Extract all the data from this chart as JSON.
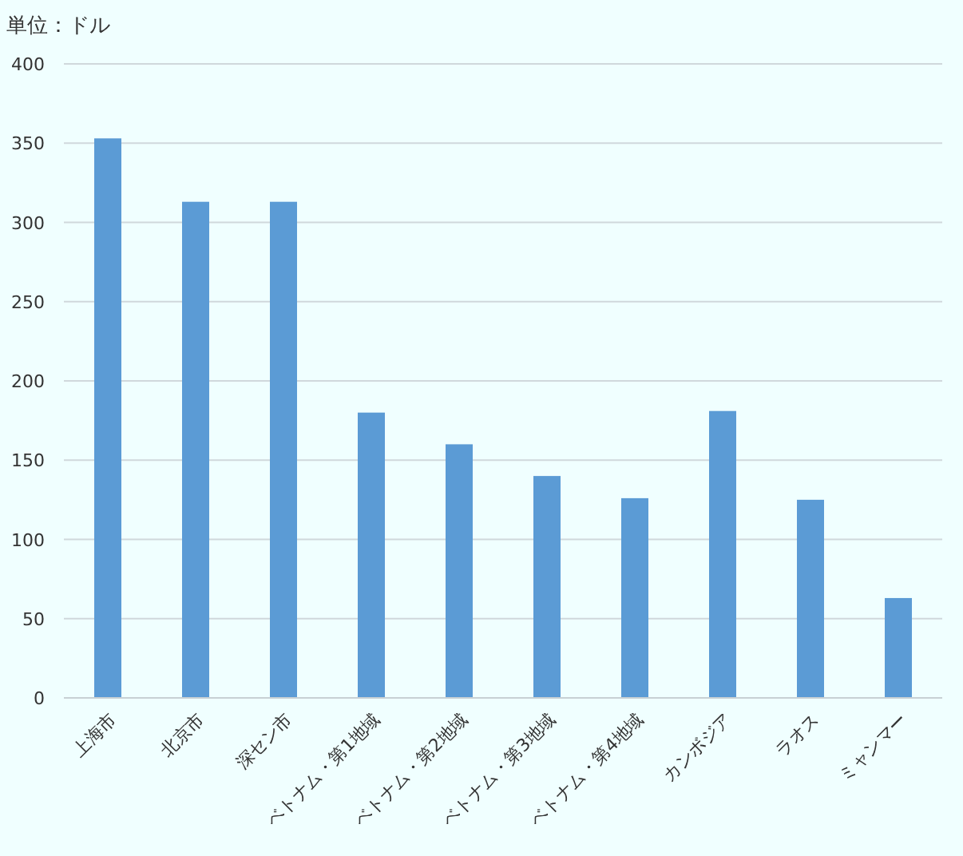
{
  "chart_data": {
    "type": "bar",
    "ylabel": "単位：ドル",
    "categories": [
      "上海市",
      "北京市",
      "深セン市",
      "ベトナム・第1地域",
      "ベトナム・第2地域",
      "ベトナム・第3地域",
      "ベトナム・第4地域",
      "カンボジア",
      "ラオス",
      "ミャンマー"
    ],
    "values": [
      353,
      313,
      313,
      180,
      160,
      140,
      126,
      181,
      125,
      63
    ],
    "color": "#5b9bd5",
    "ylim": [
      0,
      400
    ],
    "yticks": [
      0,
      50,
      100,
      150,
      200,
      250,
      300,
      350,
      400
    ],
    "grid": "y"
  }
}
